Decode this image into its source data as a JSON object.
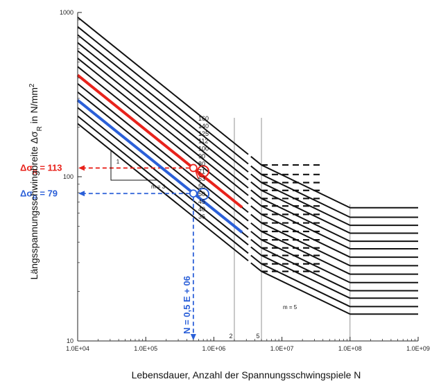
{
  "chart_data": {
    "type": "line",
    "log_x": true,
    "log_y": true,
    "xlim": [
      10000,
      1000000000
    ],
    "ylim": [
      10,
      1000
    ],
    "x_ticks": [
      {
        "value": 10000,
        "label": "1.0E+04"
      },
      {
        "value": 100000,
        "label": "1.0E+05"
      },
      {
        "value": 1000000,
        "label": "1.0E+06"
      },
      {
        "value": 10000000,
        "label": "1.0E+07"
      },
      {
        "value": 100000000,
        "label": "1.0E+08"
      },
      {
        "value": 1000000000,
        "label": "1.0E+09"
      }
    ],
    "y_ticks": [
      {
        "value": 10,
        "label": "10"
      },
      {
        "value": 100,
        "label": "100"
      },
      {
        "value": 1000,
        "label": "1000"
      }
    ],
    "extra_x_marks": [
      {
        "value": 2000000,
        "label": "2"
      },
      {
        "value": 5000000,
        "label": "5"
      }
    ],
    "xlabel": "Lebensdauer, Anzahl der Spannungsschwingspiele N",
    "ylabel": "Längsspannungsschwingbreite Δσ",
    "ylabel_sub": "R",
    "ylabel_unit": " in N/mm",
    "ylabel_sup": "2",
    "detail_categories": [
      160,
      140,
      125,
      112,
      100,
      90,
      80,
      71,
      63,
      56,
      50,
      45,
      40,
      36
    ],
    "knee_points": {
      "constant_amplitude": 5000000,
      "cut_off": 100000000
    },
    "slopes": {
      "upper": "m = 3",
      "lower": "m = 5"
    },
    "slope_triangle_label": "1",
    "highlighted": [
      {
        "category": 71,
        "color": "#e8221b",
        "delta_sigma_R": 113,
        "label": "Δσ",
        "sub": "R",
        "value_text": " = 113"
      },
      {
        "category": 50,
        "color": "#2a5fd8",
        "delta_sigma_R": 79,
        "label": "Δσ",
        "sub": "R",
        "value_text": " =  79"
      }
    ],
    "n_marker": {
      "value": 500000,
      "label": "N = 0,5 E + 06"
    },
    "colors": {
      "line": "#111111",
      "red": "#e8221b",
      "blue": "#2a5fd8",
      "grid": "#777777"
    }
  }
}
